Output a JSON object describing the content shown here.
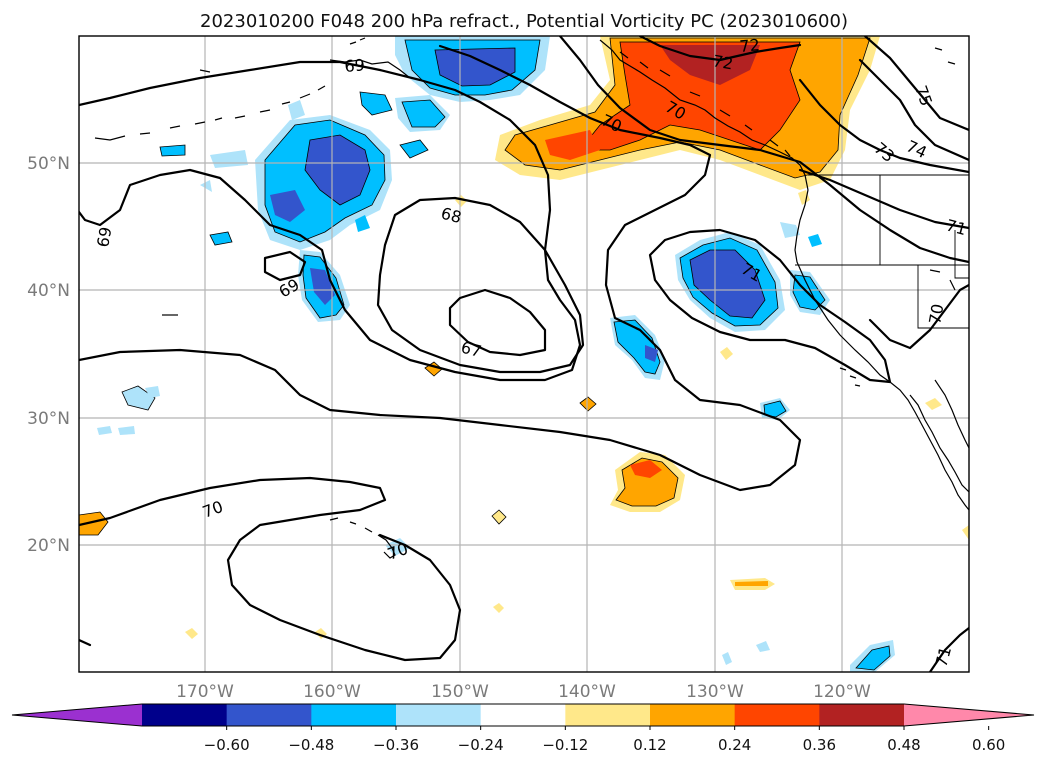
{
  "title": "2023010200 F048 200 hPa refract., Potential Vorticity PC (2023010600)",
  "lon_labels": [
    "170°W",
    "160°W",
    "150°W",
    "140°W",
    "130°W",
    "120°W"
  ],
  "lat_labels": [
    "50°N",
    "40°N",
    "30°N",
    "20°N"
  ],
  "colorbar": {
    "ticks": [
      "−0.60",
      "−0.48",
      "−0.36",
      "−0.24",
      "−0.12",
      "0.12",
      "0.24",
      "0.36",
      "0.48",
      "0.60"
    ],
    "colors": [
      "#9b30d0",
      "#00008b",
      "#3355cc",
      "#00bfff",
      "#aee3fa",
      "#ffffff",
      "#ffe88a",
      "#ffa500",
      "#ff4500",
      "#b22222",
      "#ff88aa"
    ]
  },
  "contour_labels": [
    "69",
    "69",
    "68",
    "67",
    "70",
    "70",
    "72",
    "72",
    "75",
    "74",
    "73",
    "71",
    "71",
    "70",
    "70",
    "69",
    "71",
    "70"
  ],
  "colors": {
    "orange": "#ffa500",
    "red_orange": "#ff4500",
    "dark_red": "#b22222",
    "light_yellow": "#ffe88a",
    "cyan": "#00bfff",
    "light_blue": "#aee3fa",
    "mid_blue": "#3355cc"
  }
}
